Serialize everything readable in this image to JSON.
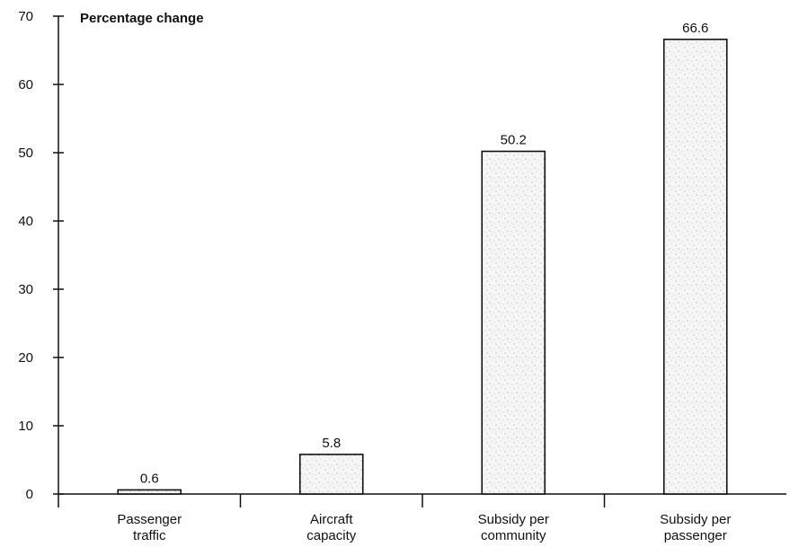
{
  "chart_data": {
    "type": "bar",
    "title": "",
    "ylabel": "Percentage change",
    "xlabel": "",
    "ylim": [
      0,
      70
    ],
    "yticks": [
      0,
      10,
      20,
      30,
      40,
      50,
      60,
      70
    ],
    "categories": [
      [
        "Passenger",
        "traffic"
      ],
      [
        "Aircraft",
        "capacity"
      ],
      [
        "Subsidy per",
        "community"
      ],
      [
        "Subsidy per",
        "passenger"
      ]
    ],
    "values": [
      0.6,
      5.8,
      50.2,
      66.6
    ],
    "value_labels": [
      "0.6",
      "5.8",
      "50.2",
      "66.6"
    ],
    "grid": false,
    "bar_fill": "#f4f4f4",
    "stipple_color": "#9a9a9a",
    "axis_color": "#111111"
  }
}
